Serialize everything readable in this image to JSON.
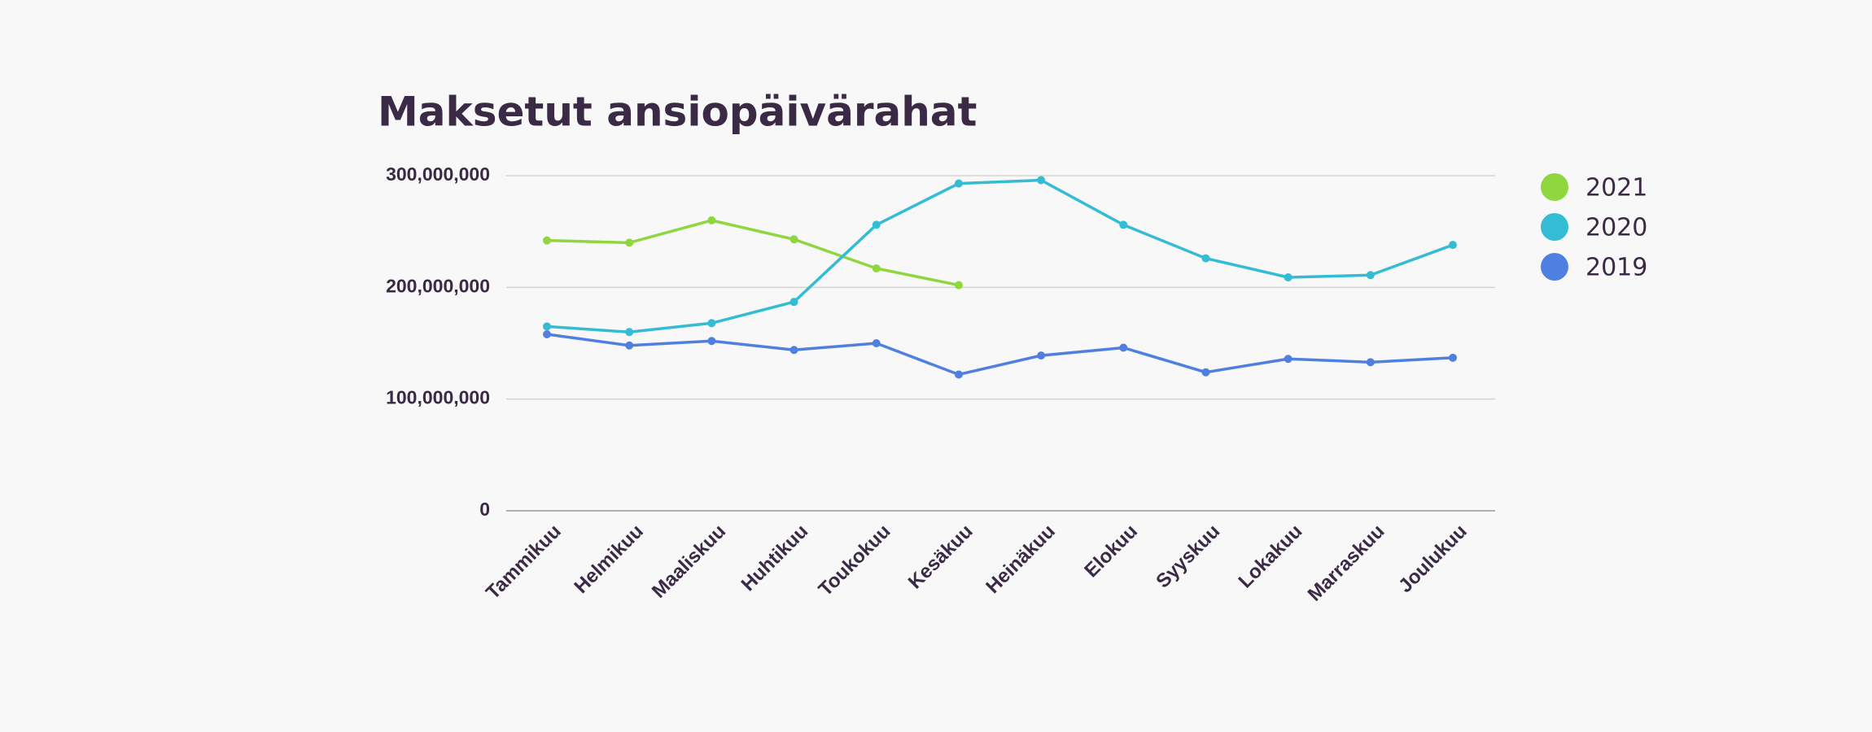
{
  "chart_data": {
    "type": "line",
    "title": "Maksetut ansiopäivärahat",
    "categories": [
      "Tammikuu",
      "Helmikuu",
      "Maaliskuu",
      "Huhtikuu",
      "Toukokuu",
      "Kesäkuu",
      "Heinäkuu",
      "Elokuu",
      "Syyskuu",
      "Lokakuu",
      "Marraskuu",
      "Joulukuu"
    ],
    "series": [
      {
        "name": "2021",
        "color": "#8fd63f",
        "values": [
          242000000,
          240000000,
          260000000,
          243000000,
          217000000,
          202000000,
          null,
          null,
          null,
          null,
          null,
          null
        ]
      },
      {
        "name": "2020",
        "color": "#33bcd4",
        "values": [
          165000000,
          160000000,
          168000000,
          187000000,
          256000000,
          293000000,
          296000000,
          256000000,
          226000000,
          209000000,
          211000000,
          238000000
        ]
      },
      {
        "name": "2019",
        "color": "#4f7fe0",
        "values": [
          158000000,
          148000000,
          152000000,
          144000000,
          150000000,
          122000000,
          139000000,
          146000000,
          124000000,
          136000000,
          133000000,
          137000000
        ]
      }
    ],
    "ylim": [
      0,
      300000000
    ],
    "yticks": [
      0,
      {
        "value": 100000000,
        "label": "100,000,000"
      },
      {
        "value": 200000000,
        "label": "200,000,000"
      },
      {
        "value": 300000000,
        "label": "300,000,000"
      }
    ],
    "grid": true,
    "legend": "right"
  }
}
